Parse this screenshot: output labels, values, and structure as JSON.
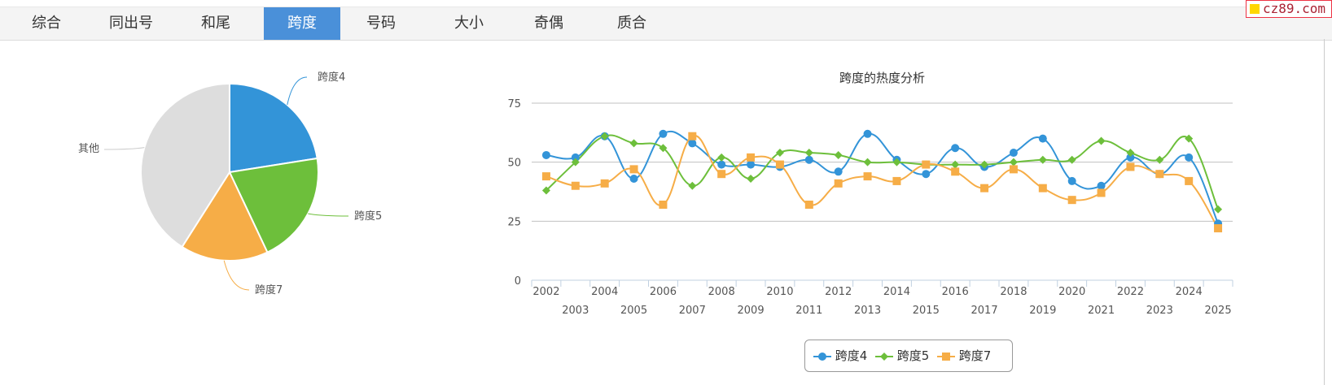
{
  "tabs": [
    {
      "label": "综合",
      "active": false
    },
    {
      "label": "同出号",
      "active": false
    },
    {
      "label": "和尾",
      "active": false
    },
    {
      "label": "跨度",
      "active": true
    },
    {
      "label": "号码",
      "active": false
    },
    {
      "label": "大小",
      "active": false
    },
    {
      "label": "奇偶",
      "active": false
    },
    {
      "label": "质合",
      "active": false
    }
  ],
  "watermark": "cz89.com",
  "colors": {
    "series1": "#3394d8",
    "series2": "#6dbf3b",
    "series3": "#f6ad47",
    "other": "#dddddd",
    "tab_active": "#4a90d9"
  },
  "chart_data": [
    {
      "type": "pie",
      "slices": [
        {
          "label": "跨度4",
          "value": 22.5,
          "color": "#3394d8"
        },
        {
          "label": "跨度5",
          "value": 20.5,
          "color": "#6dbf3b"
        },
        {
          "label": "跨度7",
          "value": 16.0,
          "color": "#f6ad47"
        },
        {
          "label": "其他",
          "value": 41.0,
          "color": "#dddddd"
        }
      ]
    },
    {
      "type": "line",
      "title": "跨度的热度分析",
      "ylim": [
        0,
        75
      ],
      "yticks": [
        0,
        25,
        50,
        75
      ],
      "x": [
        2002,
        2003,
        2004,
        2005,
        2006,
        2007,
        2008,
        2009,
        2010,
        2011,
        2012,
        2013,
        2014,
        2015,
        2016,
        2017,
        2018,
        2019,
        2020,
        2021,
        2022,
        2023,
        2024,
        2025
      ],
      "series": [
        {
          "name": "跨度4",
          "color": "#3394d8",
          "marker": "circle",
          "values": [
            53,
            52,
            61,
            43,
            62,
            58,
            49,
            49,
            48,
            51,
            46,
            62,
            51,
            45,
            56,
            48,
            54,
            60,
            42,
            40,
            52,
            45,
            52,
            24
          ]
        },
        {
          "name": "跨度5",
          "color": "#6dbf3b",
          "marker": "diamond",
          "values": [
            38,
            50,
            61,
            58,
            56,
            40,
            52,
            43,
            54,
            54,
            53,
            50,
            50,
            49,
            49,
            49,
            50,
            51,
            51,
            59,
            54,
            51,
            60,
            30
          ]
        },
        {
          "name": "跨度7",
          "color": "#f6ad47",
          "marker": "square",
          "values": [
            44,
            40,
            41,
            47,
            32,
            61,
            45,
            52,
            49,
            32,
            41,
            44,
            42,
            49,
            46,
            39,
            47,
            39,
            34,
            37,
            48,
            45,
            42,
            22
          ]
        }
      ],
      "legend": "bottom-center"
    }
  ]
}
